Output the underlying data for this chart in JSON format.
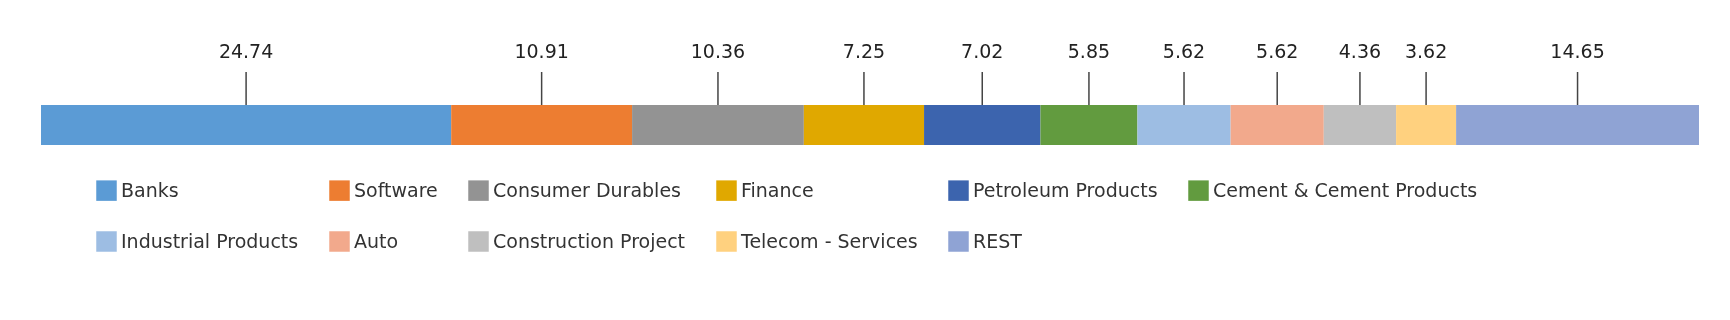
{
  "chart_data": {
    "type": "bar",
    "orientation": "horizontal",
    "stacked": true,
    "categories": [
      null
    ],
    "data_labels": true,
    "legend": "bottom",
    "series": [
      {
        "name": "Banks",
        "color": "#5b9bd5",
        "values": [
          24.74
        ]
      },
      {
        "name": "Software",
        "color": "#ed7d31",
        "values": [
          10.91
        ]
      },
      {
        "name": "Consumer Durables",
        "color": "#939393",
        "values": [
          10.36
        ]
      },
      {
        "name": "Finance",
        "color": "#e0a800",
        "values": [
          7.25
        ]
      },
      {
        "name": "Petroleum Products",
        "color": "#3c64ae",
        "values": [
          7.02
        ]
      },
      {
        "name": "Cement & Cement Products",
        "color": "#629b3f",
        "values": [
          5.85
        ]
      },
      {
        "name": "Industrial Products",
        "color": "#9dbde3",
        "values": [
          5.62
        ]
      },
      {
        "name": "Auto",
        "color": "#f2a98c",
        "values": [
          5.62
        ]
      },
      {
        "name": "Construction Project",
        "color": "#bfbfbf",
        "values": [
          4.36
        ]
      },
      {
        "name": "Telecom - Services",
        "color": "#ffd17f",
        "values": [
          3.62
        ]
      },
      {
        "name": "REST",
        "color": "#8fa3d4",
        "values": [
          14.65
        ]
      }
    ]
  }
}
